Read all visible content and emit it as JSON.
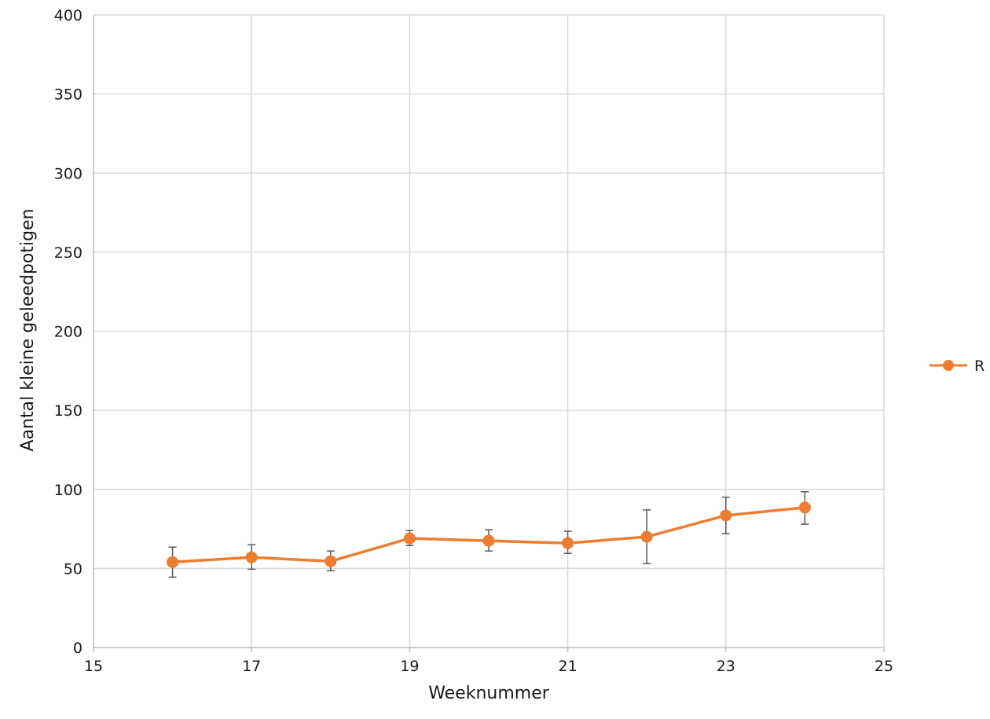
{
  "chart_data": {
    "type": "scatter",
    "title": "",
    "xlabel": "Weeknummer",
    "ylabel": "Aantal kleine geleedpotigen",
    "xlim": [
      15,
      25
    ],
    "ylim": [
      0,
      400
    ],
    "x_ticks": [
      15,
      17,
      19,
      21,
      23,
      25
    ],
    "y_ticks": [
      0,
      50,
      100,
      150,
      200,
      250,
      300,
      350,
      400
    ],
    "grid": true,
    "legend": "right",
    "series": [
      {
        "name": "R",
        "color": "#ED7D31",
        "marker": "circle",
        "line": true,
        "x": [
          16,
          17,
          18,
          19,
          20,
          21,
          22,
          23,
          24
        ],
        "y": [
          54,
          57,
          54.5,
          69,
          67.5,
          66,
          70,
          83.5,
          88.5
        ],
        "error_low": [
          44.5,
          49.5,
          48.5,
          64.5,
          61,
          59.5,
          53,
          72,
          78
        ],
        "error_high": [
          63.5,
          65,
          61,
          74,
          74.5,
          73.5,
          87,
          95,
          98.5
        ]
      }
    ]
  }
}
